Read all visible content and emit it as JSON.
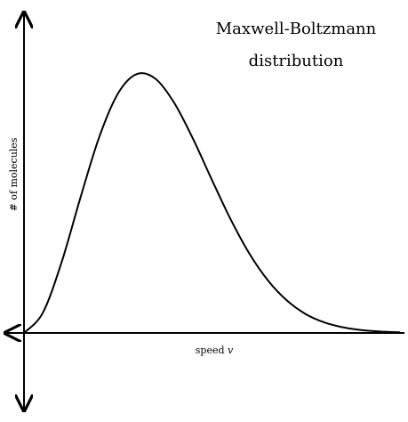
{
  "chart_data": {
    "type": "line",
    "title_lines": [
      "Maxwell-Boltzmann",
      "distribution"
    ],
    "xlabel": "speed",
    "xlabel_variable": "v",
    "ylabel": "# of molecules",
    "series": [
      {
        "x": [
          0,
          0.25,
          0.5,
          0.75,
          1.0,
          1.25,
          1.5,
          1.75,
          2.0,
          2.25,
          2.5,
          2.75,
          3.0,
          3.25,
          3.5,
          3.75,
          4.0,
          4.25,
          4.5,
          4.75,
          5.0
        ],
        "y": [
          0,
          0.058,
          0.204,
          0.39,
          0.565,
          0.691,
          0.747,
          0.733,
          0.663,
          0.559,
          0.441,
          0.327,
          0.228,
          0.15,
          0.093,
          0.054,
          0.03,
          0.016,
          0.008,
          0.004,
          0.002
        ]
      }
    ],
    "xlim": [
      0,
      5
    ],
    "ylim": [
      0,
      0.75
    ],
    "grid": false,
    "legend": "none",
    "colors": {
      "curve": "#000000",
      "axis": "#000000"
    }
  }
}
